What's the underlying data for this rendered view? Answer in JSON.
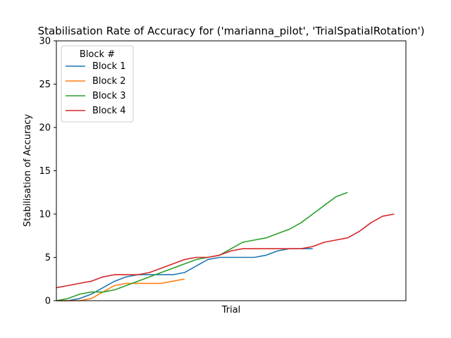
{
  "chart_data": {
    "type": "line",
    "title": "Stabilisation Rate of Accuracy for ('marianna_pilot', 'TrialSpatialRotation')",
    "xlabel": "Trial",
    "ylabel": "Stabilisation of Accuracy",
    "ylim": [
      0,
      30
    ],
    "yticks": [
      "0",
      "5",
      "10",
      "15",
      "20",
      "25",
      "30"
    ],
    "xlim": [
      0,
      30
    ],
    "grid": false,
    "legend": {
      "title": "Block #",
      "placement": "top-left"
    },
    "series": [
      {
        "name": "Block 1",
        "color": "#1f77b4",
        "x": [
          0,
          1,
          2,
          3,
          4,
          5,
          6,
          7,
          8,
          9,
          10,
          11,
          12,
          13,
          14,
          15,
          16,
          17,
          18,
          19,
          20,
          21,
          22
        ],
        "y": [
          0,
          0,
          0.25,
          0.75,
          1.5,
          2.25,
          2.75,
          3,
          3,
          3,
          3,
          3.25,
          4,
          4.75,
          5,
          5,
          5,
          5,
          5.25,
          5.75,
          6,
          6,
          6
        ]
      },
      {
        "name": "Block 2",
        "color": "#ff7f0e",
        "x": [
          0,
          1,
          2,
          3,
          4,
          5,
          6,
          7,
          8,
          9,
          10,
          11
        ],
        "y": [
          0,
          0,
          0,
          0.25,
          1,
          1.75,
          2,
          2,
          2,
          2,
          2.25,
          2.5
        ]
      },
      {
        "name": "Block 3",
        "color": "#2ca02c",
        "x": [
          0,
          1,
          2,
          3,
          4,
          5,
          6,
          7,
          8,
          9,
          10,
          11,
          12,
          13,
          14,
          15,
          16,
          17,
          18,
          19,
          20,
          21,
          22,
          23,
          24,
          25
        ],
        "y": [
          0,
          0.25,
          0.75,
          1,
          1,
          1.25,
          1.75,
          2.25,
          2.75,
          3.25,
          3.75,
          4.25,
          4.75,
          5,
          5.25,
          6,
          6.75,
          7,
          7.25,
          7.75,
          8.25,
          9,
          10,
          11,
          12,
          12.5
        ]
      },
      {
        "name": "Block 4",
        "color": "#d62728",
        "x": [
          0,
          1,
          2,
          3,
          4,
          5,
          6,
          7,
          8,
          9,
          10,
          11,
          12,
          13,
          14,
          15,
          16,
          17,
          18,
          19,
          20,
          21,
          22,
          23,
          24,
          25,
          26,
          27,
          28,
          29
        ],
        "y": [
          1.5,
          1.75,
          2,
          2.25,
          2.75,
          3,
          3,
          3,
          3.25,
          3.75,
          4.25,
          4.75,
          5,
          5,
          5.25,
          5.75,
          6,
          6,
          6,
          6,
          6,
          6,
          6.25,
          6.75,
          7,
          7.25,
          8,
          9,
          9.75,
          10
        ]
      }
    ]
  }
}
